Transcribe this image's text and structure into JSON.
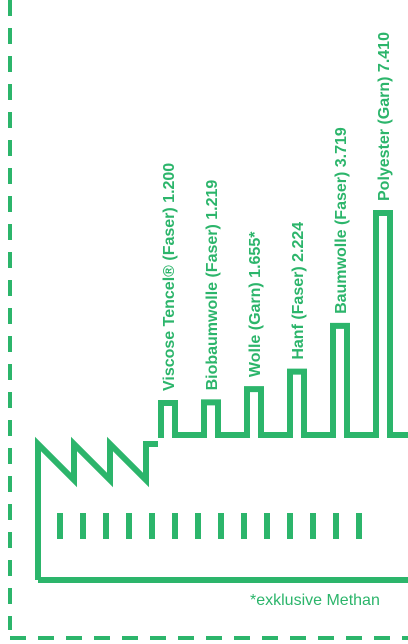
{
  "colors": {
    "accent": "#2cb56b",
    "background": "#ffffff"
  },
  "chart_data": {
    "type": "bar",
    "categories": [
      "Viscose Tencel® (Faser)",
      "Biobaumwolle (Faser)",
      "Wolle (Garn)",
      "Hanf (Faser)",
      "Baumwolle (Faser)",
      "Polyester (Garn)"
    ],
    "values": [
      1200,
      1219,
      1655,
      2224,
      3719,
      7410
    ],
    "labels": [
      "Viscose Tencel® (Faser) 1.200",
      "Biobaumwolle (Faser) 1.219",
      "Wolle (Garn) 1.655*",
      "Hanf (Faser) 2.224",
      "Baumwolle (Faser) 3.719",
      "Polyester (Garn) 7.410"
    ],
    "title": "",
    "xlabel": "",
    "ylabel": ""
  },
  "footnote": "*exklusive Methan"
}
